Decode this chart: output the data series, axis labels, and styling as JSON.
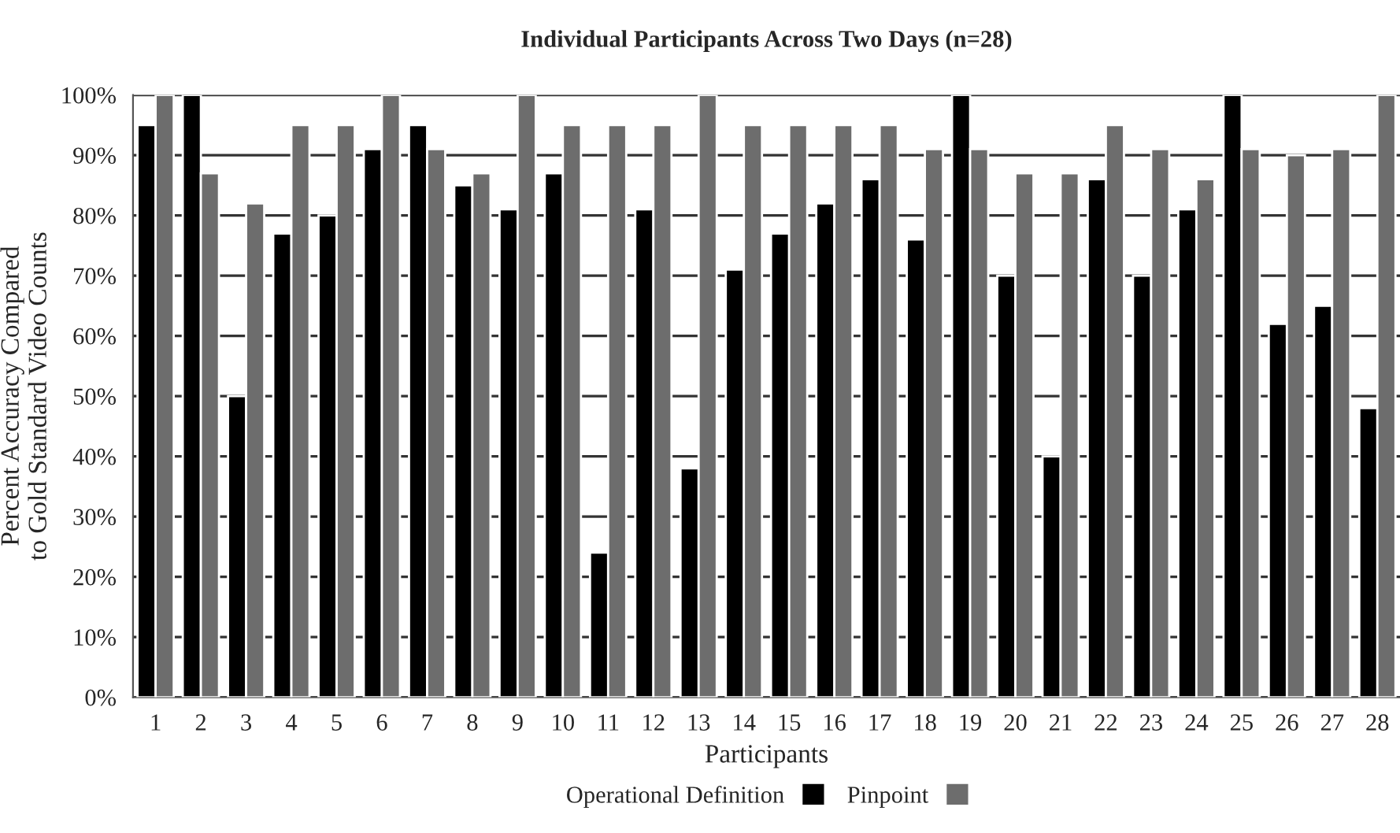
{
  "chart_data": {
    "type": "bar",
    "title": "Individual Participants Across Two Days (n=28)",
    "xlabel": "Participants",
    "ylabel": "Percent Accuracy Compared\nto Gold Standard Video Counts",
    "categories": [
      "1",
      "2",
      "3",
      "4",
      "5",
      "6",
      "7",
      "8",
      "9",
      "10",
      "11",
      "12",
      "13",
      "14",
      "15",
      "16",
      "17",
      "18",
      "19",
      "20",
      "21",
      "22",
      "23",
      "24",
      "25",
      "26",
      "27",
      "28"
    ],
    "series": [
      {
        "name": "Operational Definition",
        "color": "#000000",
        "values": [
          95,
          100,
          50,
          77,
          80,
          91,
          95,
          85,
          81,
          87,
          24,
          81,
          38,
          71,
          77,
          82,
          86,
          76,
          100,
          70,
          40,
          86,
          70,
          81,
          100,
          62,
          65,
          48
        ]
      },
      {
        "name": "Pinpoint",
        "color": "#6d6d6d",
        "values": [
          100,
          87,
          82,
          95,
          95,
          100,
          91,
          87,
          100,
          95,
          95,
          95,
          100,
          95,
          95,
          95,
          95,
          91,
          91,
          87,
          87,
          95,
          91,
          86,
          91,
          90,
          91,
          100
        ]
      }
    ],
    "ylim": [
      0,
      100
    ],
    "yticks": [
      {
        "value": 0,
        "label": "0%"
      },
      {
        "value": 10,
        "label": "10%"
      },
      {
        "value": 20,
        "label": "20%"
      },
      {
        "value": 30,
        "label": "30%"
      },
      {
        "value": 40,
        "label": "40%"
      },
      {
        "value": 50,
        "label": "50%"
      },
      {
        "value": 60,
        "label": "60%"
      },
      {
        "value": 70,
        "label": "70%"
      },
      {
        "value": 80,
        "label": "80%"
      },
      {
        "value": 90,
        "label": "90%"
      },
      {
        "value": 100,
        "label": "100%"
      }
    ],
    "grid": "y",
    "legend": "bottom"
  }
}
